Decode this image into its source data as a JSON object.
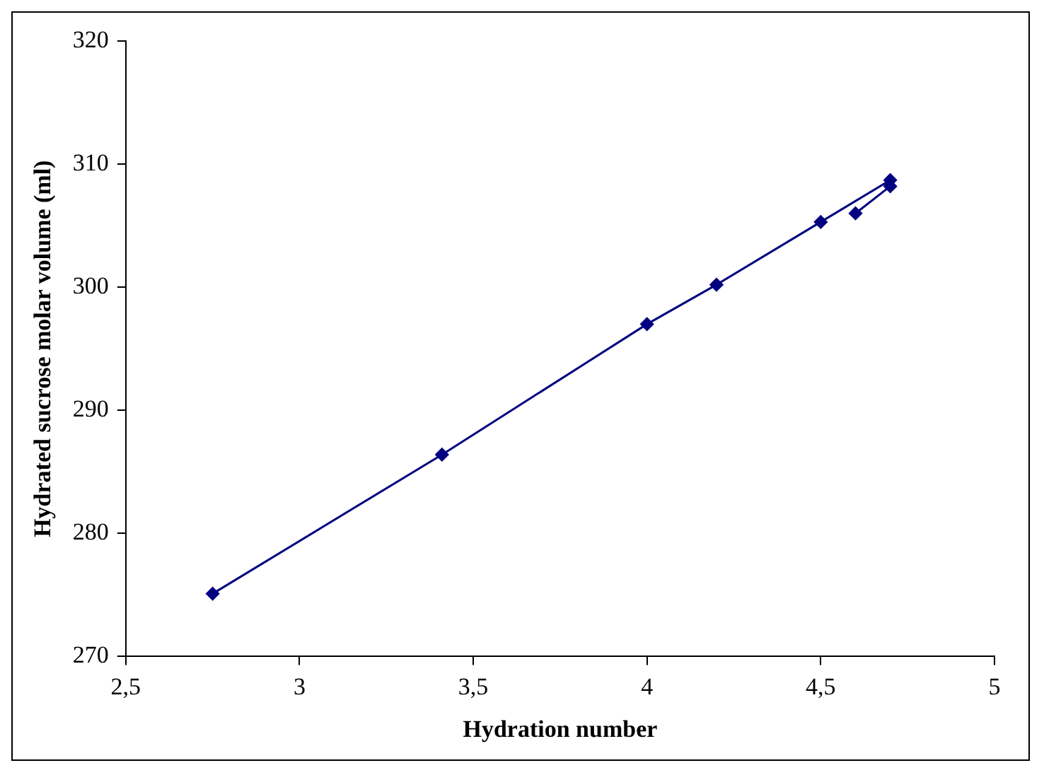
{
  "chart_data": {
    "type": "line",
    "xlabel": "Hydration number",
    "ylabel": "Hydrated sucrose molar volume (ml)",
    "series": [
      {
        "color": "#000080",
        "x": [
          2.75,
          3.41,
          4.0,
          4.2,
          4.5,
          4.7,
          4.7,
          4.6
        ],
        "values": [
          275.1,
          286.4,
          297.0,
          300.2,
          305.3,
          308.7,
          308.2,
          306.0
        ]
      }
    ],
    "xlim": [
      2.5,
      5
    ],
    "xticks": [
      {
        "value": 2.5,
        "label": "2,5"
      },
      3,
      {
        "value": 3.5,
        "label": "3,5"
      },
      4,
      {
        "value": 4.5,
        "label": "4,5"
      },
      5
    ],
    "ylim": [
      270,
      320
    ],
    "yticks": [
      270,
      280,
      290,
      300,
      310,
      320
    ],
    "grid": false,
    "legend": false,
    "marker": "diamond",
    "line_style": "solid"
  }
}
